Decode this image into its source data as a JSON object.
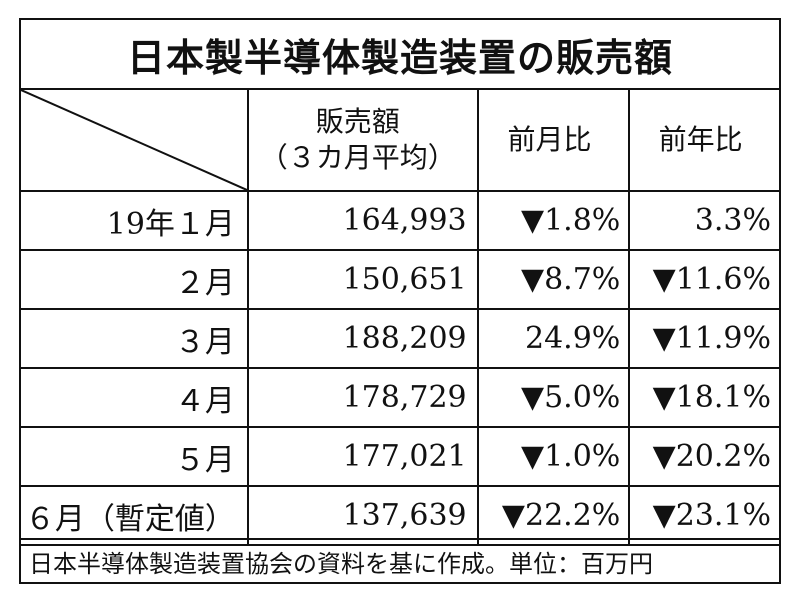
{
  "title": "日本製半導体製造装置の販売額",
  "header": {
    "sales_line1": "販売額",
    "sales_line2": "（３カ月平均）",
    "mom": "前月比",
    "yoy": "前年比"
  },
  "rows": [
    {
      "label": "19年１月",
      "sales": "164,993",
      "mom": "▼1.8%",
      "yoy": "3.3%"
    },
    {
      "label": "２月",
      "sales": "150,651",
      "mom": "▼8.7%",
      "yoy": "▼11.6%"
    },
    {
      "label": "３月",
      "sales": "188,209",
      "mom": "24.9%",
      "yoy": "▼11.9%"
    },
    {
      "label": "４月",
      "sales": "178,729",
      "mom": "▼5.0%",
      "yoy": "▼18.1%"
    },
    {
      "label": "５月",
      "sales": "177,021",
      "mom": "▼1.0%",
      "yoy": "▼20.2%"
    },
    {
      "label": "６月（暫定値）",
      "sales": "137,639",
      "mom": "▼22.2%",
      "yoy": "▼23.1%"
    }
  ],
  "footer": "日本半導体製造装置協会の資料を基に作成。単位：百万円"
}
